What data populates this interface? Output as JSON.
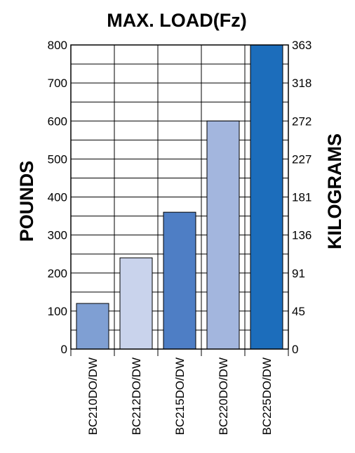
{
  "chart_data": {
    "type": "bar",
    "title": "MAX. LOAD(Fz)",
    "ylabel": "POUNDS",
    "y2label": "KILOGRAMS",
    "categories": [
      "BC210DO/DW",
      "BC212DO/DW",
      "BC215DO/DW",
      "BC220DO/DW",
      "BC225DO/DW"
    ],
    "values": [
      120,
      240,
      360,
      600,
      800
    ],
    "ylim": [
      0,
      800
    ],
    "yticks": [
      "0",
      "100",
      "200",
      "300",
      "400",
      "500",
      "600",
      "700",
      "800"
    ],
    "y2ticks": [
      "0",
      "45",
      "91",
      "136",
      "181",
      "227",
      "272",
      "318",
      "363"
    ],
    "grid": true,
    "colors": [
      "#7f9fd3",
      "#c9d3ec",
      "#4e7ec5",
      "#a3b6de",
      "#1c6dbb"
    ]
  }
}
